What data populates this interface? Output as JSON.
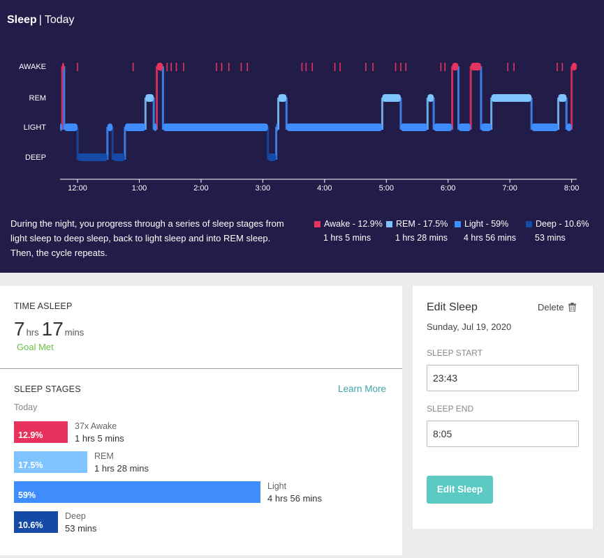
{
  "header": {
    "title": "Sleep",
    "separator": "|",
    "subtitle": "Today"
  },
  "chart_data": {
    "type": "line",
    "title": "",
    "stage_labels": [
      "AWAKE",
      "REM",
      "LIGHT",
      "DEEP"
    ],
    "x_tick_labels": [
      "12:00",
      "1:00",
      "2:00",
      "3:00",
      "4:00",
      "5:00",
      "6:00",
      "7:00",
      "8:00"
    ],
    "x_unit": "hours after 23:43",
    "xlim": [
      "23:43",
      "8:05"
    ],
    "series": [
      {
        "stage": "LIGHT",
        "from": "23:43",
        "to": "23:45"
      },
      {
        "stage": "AWAKE",
        "from": "23:45",
        "to": "23:47"
      },
      {
        "stage": "LIGHT",
        "from": "23:47",
        "to": "0:00"
      },
      {
        "stage": "DEEP",
        "from": "0:00",
        "to": "0:29"
      },
      {
        "stage": "LIGHT",
        "from": "0:29",
        "to": "0:34"
      },
      {
        "stage": "DEEP",
        "from": "0:34",
        "to": "0:46"
      },
      {
        "stage": "LIGHT",
        "from": "0:46",
        "to": "1:06"
      },
      {
        "stage": "REM",
        "from": "1:06",
        "to": "1:14"
      },
      {
        "stage": "LIGHT",
        "from": "1:14",
        "to": "1:17"
      },
      {
        "stage": "AWAKE",
        "from": "1:17",
        "to": "1:23"
      },
      {
        "stage": "LIGHT",
        "from": "1:23",
        "to": "3:05"
      },
      {
        "stage": "DEEP",
        "from": "3:05",
        "to": "3:13"
      },
      {
        "stage": "LIGHT",
        "from": "3:13",
        "to": "3:15"
      },
      {
        "stage": "REM",
        "from": "3:15",
        "to": "3:23"
      },
      {
        "stage": "LIGHT",
        "from": "3:23",
        "to": "4:56"
      },
      {
        "stage": "REM",
        "from": "4:56",
        "to": "5:14"
      },
      {
        "stage": "LIGHT",
        "from": "5:14",
        "to": "5:40"
      },
      {
        "stage": "REM",
        "from": "5:40",
        "to": "5:46"
      },
      {
        "stage": "LIGHT",
        "from": "5:46",
        "to": "6:04"
      },
      {
        "stage": "AWAKE",
        "from": "6:04",
        "to": "6:10"
      },
      {
        "stage": "LIGHT",
        "from": "6:10",
        "to": "6:22"
      },
      {
        "stage": "AWAKE",
        "from": "6:22",
        "to": "6:32"
      },
      {
        "stage": "LIGHT",
        "from": "6:32",
        "to": "6:42"
      },
      {
        "stage": "REM",
        "from": "6:42",
        "to": "7:21"
      },
      {
        "stage": "LIGHT",
        "from": "7:21",
        "to": "7:47"
      },
      {
        "stage": "REM",
        "from": "7:47",
        "to": "7:55"
      },
      {
        "stage": "LIGHT",
        "from": "7:55",
        "to": "8:00"
      },
      {
        "stage": "AWAKE",
        "from": "8:00",
        "to": "8:05"
      }
    ],
    "brief_awakenings": [
      "0:00",
      "0:54",
      "1:21",
      "1:27",
      "1:31",
      "1:36",
      "1:43",
      "2:15",
      "2:20",
      "2:27",
      "2:39",
      "2:45",
      "3:38",
      "3:42",
      "3:48",
      "4:10",
      "4:15",
      "4:40",
      "4:47",
      "5:09",
      "5:14",
      "5:19",
      "5:53",
      "5:57",
      "6:58",
      "7:04",
      "7:46",
      "7:51"
    ],
    "colors": {
      "AWAKE": "#e73360",
      "REM": "#7ec4ff",
      "LIGHT": "#3f8dfd",
      "DEEP": "#154ba6"
    }
  },
  "description": "During the night, you progress through a series of sleep stages from light sleep to deep sleep, back to light sleep and into REM sleep. Then, the cycle repeats.",
  "legend": [
    {
      "label": "Awake - 12.9%",
      "duration": "1 hrs 5 mins",
      "color": "#e73360"
    },
    {
      "label": "REM - 17.5%",
      "duration": "1 hrs 28 mins",
      "color": "#7ec4ff"
    },
    {
      "label": "Light - 59%",
      "duration": "4 hrs 56 mins",
      "color": "#3f8dfd"
    },
    {
      "label": "Deep - 10.6%",
      "duration": "53 mins",
      "color": "#154ba6"
    }
  ],
  "time_asleep": {
    "label": "TIME ASLEEP",
    "hours": "7",
    "hours_unit": "hrs",
    "minutes": "17",
    "minutes_unit": "mins",
    "goal": "Goal Met"
  },
  "sleep_stages": {
    "label": "SLEEP STAGES",
    "learn_more": "Learn More",
    "period": "Today",
    "bars": [
      {
        "percent_label": "12.9%",
        "percent": 12.9,
        "name": "37x Awake",
        "duration": "1 hrs 5 mins",
        "color": "#e8325e"
      },
      {
        "percent_label": "17.5%",
        "percent": 17.5,
        "name": "REM",
        "duration": "1 hrs 28 mins",
        "color": "#7ec4ff"
      },
      {
        "percent_label": "59%",
        "percent": 59,
        "name": "Light",
        "duration": "4 hrs 56 mins",
        "color": "#3f8dfd"
      },
      {
        "percent_label": "10.6%",
        "percent": 10.6,
        "name": "Deep",
        "duration": "53 mins",
        "color": "#154ba6"
      }
    ]
  },
  "edit_sleep": {
    "title": "Edit Sleep",
    "delete": "Delete",
    "date": "Sunday, Jul 19, 2020",
    "start_label": "SLEEP START",
    "start_value": "23:43",
    "end_label": "SLEEP END",
    "end_value": "8:05",
    "button": "Edit Sleep"
  }
}
